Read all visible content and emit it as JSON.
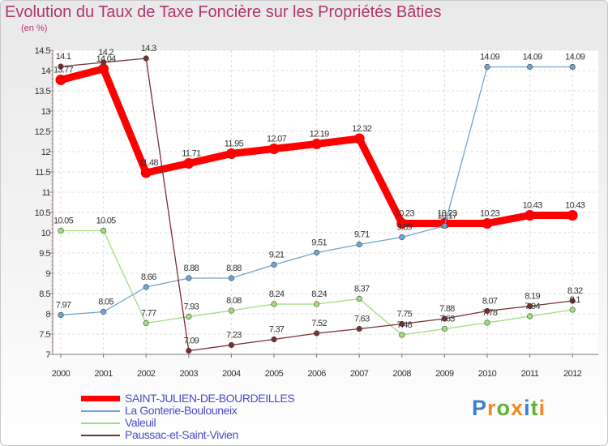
{
  "chart_data": {
    "type": "line",
    "title": "Evolution du Taux de Taxe Foncière sur les Propriétés Bâties",
    "ylabel": "(en %)",
    "xlabel": "",
    "ylim": [
      7,
      14.5
    ],
    "yticks": [
      "7",
      "7.5",
      "8",
      "8.5",
      "9",
      "9.5",
      "10",
      "10.5",
      "11",
      "11.5",
      "12",
      "12.5",
      "13",
      "13.5",
      "14",
      "14.5"
    ],
    "categories": [
      "2000",
      "2001",
      "2002",
      "2003",
      "2004",
      "2005",
      "2006",
      "2007",
      "2008",
      "2009",
      "2010",
      "2011",
      "2012"
    ],
    "series": [
      {
        "name": "SAINT-JULIEN-DE-BOURDEILLES",
        "color": "#ff0000",
        "values": [
          13.77,
          14.04,
          11.48,
          11.71,
          11.95,
          12.07,
          12.19,
          12.32,
          10.23,
          10.23,
          10.23,
          10.43,
          10.43
        ],
        "labels": [
          "13.77",
          "14.04",
          "11.48",
          "11.71",
          "11.95",
          "12.07",
          "12.19",
          "12.32",
          "10.23",
          "10.23",
          "10.23",
          "10.43",
          "10.43"
        ]
      },
      {
        "name": "La Gonterie-Boulouneix",
        "color": "#6ea4d2",
        "values": [
          7.97,
          8.05,
          8.66,
          8.88,
          8.88,
          9.21,
          9.51,
          9.71,
          9.89,
          10.17,
          14.09,
          14.09,
          14.09
        ],
        "labels": [
          "7.97",
          "8.05",
          "8.66",
          "8.88",
          "8.88",
          "9.21",
          "9.51",
          "9.71",
          "9.89",
          "10.17",
          "14.09",
          "14.09",
          "14.09"
        ]
      },
      {
        "name": "Valeuil",
        "color": "#9ede7b",
        "values": [
          10.05,
          10.05,
          7.77,
          7.93,
          8.08,
          8.24,
          8.24,
          8.37,
          7.48,
          7.63,
          7.78,
          7.94,
          8.1
        ],
        "labels": [
          "10.05",
          "10.05",
          "7.77",
          "7.93",
          "8.08",
          "8.24",
          "8.24",
          "8.37",
          "7.48",
          "7.63",
          "7.78",
          "7.94",
          "8.1"
        ]
      },
      {
        "name": "Paussac-et-Saint-Vivien",
        "color": "#7a2d33",
        "values": [
          14.1,
          14.2,
          14.3,
          7.09,
          7.23,
          7.37,
          7.52,
          7.63,
          7.75,
          7.88,
          8.07,
          8.19,
          8.32
        ],
        "labels": [
          "14.1",
          "14.2",
          "14.3",
          "7.09",
          "7.23",
          "7.37",
          "7.52",
          "7.63",
          "7.75",
          "7.88",
          "8.07",
          "8.19",
          "8.32"
        ]
      }
    ]
  },
  "logo": {
    "text": "Proxiti"
  }
}
